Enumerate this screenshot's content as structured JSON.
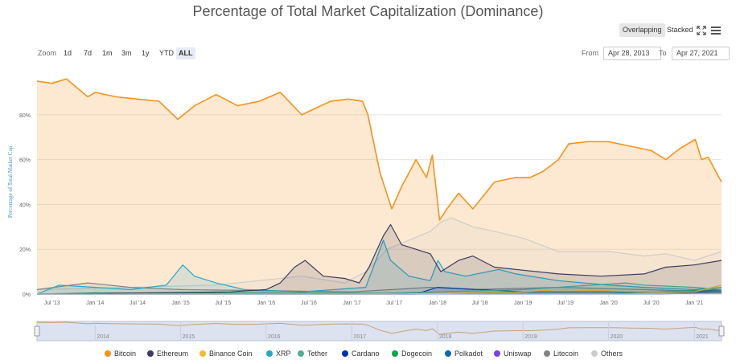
{
  "title": "Percentage of Total Market Capitalization (Dominance)",
  "toolbar": {
    "overlapping": "Overlapping",
    "stacked": "Stacked"
  },
  "zoom": {
    "label": "Zoom",
    "buttons": [
      "1d",
      "7d",
      "1m",
      "3m",
      "1y",
      "YTD",
      "ALL"
    ],
    "active": "ALL"
  },
  "range": {
    "from_label": "From",
    "from_value": "Apr 28, 2013",
    "to_label": "To",
    "to_value": "Apr 27, 2021"
  },
  "icons": {
    "fullscreen": "fullscreen-icon",
    "menu": "menu-icon"
  },
  "chart_data": {
    "type": "area",
    "title": "Percentage of Total Market Capitalization (Dominance)",
    "ylabel": "Percentage of Total Market Cap",
    "ylim": [
      0,
      100
    ],
    "yticks": [
      "0%",
      "20%",
      "40%",
      "60%",
      "80%"
    ],
    "xlim": [
      "2013-04-28",
      "2021-04-27"
    ],
    "xticks": [
      "Jul '13",
      "Jan '14",
      "Jul '14",
      "Jan '15",
      "Jul '15",
      "Jan '16",
      "Jul '16",
      "Jan '17",
      "Jul '17",
      "Jan '18",
      "Jul '18",
      "Jan '19",
      "Jul '19",
      "Jan '20",
      "Jul '20",
      "Jan '21"
    ],
    "navigator_years": [
      "2014",
      "2015",
      "2016",
      "2017",
      "2018",
      "2019",
      "2020",
      "2021"
    ],
    "grid": true,
    "legend_position": "bottom",
    "series": [
      {
        "name": "Bitcoin",
        "color": "#f7931a",
        "x": [
          "2013-04-28",
          "2013-07-01",
          "2013-09-01",
          "2013-12-01",
          "2014-01-01",
          "2014-04-01",
          "2014-07-01",
          "2014-10-01",
          "2014-12-20",
          "2015-03-01",
          "2015-06-01",
          "2015-09-01",
          "2015-12-01",
          "2016-03-01",
          "2016-06-01",
          "2016-08-01",
          "2016-10-01",
          "2016-12-15",
          "2017-02-15",
          "2017-03-10",
          "2017-05-01",
          "2017-06-20",
          "2017-08-01",
          "2017-09-01",
          "2017-10-01",
          "2017-11-15",
          "2017-12-10",
          "2018-01-10",
          "2018-02-10",
          "2018-04-01",
          "2018-06-01",
          "2018-09-01",
          "2018-12-01",
          "2019-02-01",
          "2019-04-01",
          "2019-06-01",
          "2019-07-15",
          "2019-10-01",
          "2020-01-01",
          "2020-04-01",
          "2020-07-01",
          "2020-09-01",
          "2020-11-01",
          "2021-01-05",
          "2021-02-01",
          "2021-03-01",
          "2021-04-27"
        ],
        "values": [
          95,
          94,
          96,
          88,
          90,
          88,
          87,
          86,
          78,
          84,
          89,
          84,
          86,
          90,
          80,
          83,
          86,
          87,
          86,
          80,
          54,
          38,
          48,
          54,
          60,
          52,
          62,
          33,
          38,
          45,
          38,
          50,
          52,
          52,
          55,
          60,
          67,
          68,
          68,
          66,
          64,
          60,
          65,
          69,
          60,
          61,
          50
        ]
      },
      {
        "name": "Ethereum",
        "color": "#3c3c5d",
        "x": [
          "2013-04-28",
          "2015-08-01",
          "2016-01-01",
          "2016-03-01",
          "2016-05-01",
          "2016-06-15",
          "2016-09-01",
          "2016-12-01",
          "2017-02-01",
          "2017-03-15",
          "2017-05-15",
          "2017-06-15",
          "2017-08-01",
          "2017-10-01",
          "2017-12-01",
          "2018-01-15",
          "2018-04-01",
          "2018-06-01",
          "2018-09-01",
          "2018-12-01",
          "2019-06-01",
          "2019-12-01",
          "2020-06-01",
          "2020-09-01",
          "2021-01-01",
          "2021-04-27"
        ],
        "values": [
          0,
          1,
          2,
          5,
          12,
          15,
          8,
          7,
          5,
          12,
          26,
          31,
          22,
          20,
          18,
          10,
          15,
          17,
          12,
          11,
          9,
          8,
          9,
          12,
          13,
          15
        ]
      },
      {
        "name": "Binance Coin",
        "color": "#f3ba2f",
        "x": [
          "2013-04-28",
          "2017-07-01",
          "2019-01-01",
          "2019-06-01",
          "2020-06-01",
          "2021-01-01",
          "2021-04-27"
        ],
        "values": [
          0,
          0,
          1,
          2,
          1,
          1,
          4
        ]
      },
      {
        "name": "XRP",
        "color": "#23a8c8",
        "x": [
          "2013-04-28",
          "2013-08-01",
          "2014-01-01",
          "2014-06-01",
          "2014-11-01",
          "2015-01-10",
          "2015-03-01",
          "2015-06-01",
          "2015-10-01",
          "2016-06-01",
          "2017-03-01",
          "2017-05-15",
          "2017-06-15",
          "2017-09-01",
          "2017-12-01",
          "2018-01-03",
          "2018-02-01",
          "2018-05-01",
          "2018-09-20",
          "2018-12-01",
          "2019-06-01",
          "2020-01-01",
          "2020-06-01",
          "2021-01-01",
          "2021-04-27"
        ],
        "values": [
          0,
          4,
          3,
          2,
          4,
          13,
          8,
          5,
          2,
          1,
          3,
          24,
          15,
          8,
          6,
          15,
          10,
          8,
          11,
          9,
          6,
          4,
          3,
          2,
          3
        ]
      },
      {
        "name": "Tether",
        "color": "#50af95",
        "x": [
          "2013-04-28",
          "2017-01-01",
          "2018-01-01",
          "2019-01-01",
          "2020-03-15",
          "2020-06-01",
          "2021-01-01",
          "2021-04-27"
        ],
        "values": [
          0,
          0,
          1,
          2,
          5,
          4,
          3,
          2
        ]
      },
      {
        "name": "Cardano",
        "color": "#0033ad",
        "x": [
          "2013-04-28",
          "2017-10-01",
          "2018-01-01",
          "2019-01-01",
          "2021-01-01",
          "2021-04-27"
        ],
        "values": [
          0,
          0,
          3,
          1,
          1,
          2
        ]
      },
      {
        "name": "Dogecoin",
        "color": "#07a84c",
        "x": [
          "2013-04-28",
          "2014-01-01",
          "2020-01-01",
          "2021-04-27"
        ],
        "values": [
          0,
          0.5,
          0.3,
          2
        ]
      },
      {
        "name": "Polkadot",
        "color": "#0b68b3",
        "x": [
          "2013-04-28",
          "2020-08-20",
          "2021-04-27"
        ],
        "values": [
          0,
          0,
          1.5
        ]
      },
      {
        "name": "Uniswap",
        "color": "#7b3fe4",
        "x": [
          "2013-04-28",
          "2020-09-17",
          "2021-04-27"
        ],
        "values": [
          0,
          0,
          1
        ]
      },
      {
        "name": "Litecoin",
        "color": "#838383",
        "x": [
          "2013-04-28",
          "2013-12-01",
          "2014-06-01",
          "2015-01-01",
          "2017-01-01",
          "2017-12-01",
          "2018-06-01",
          "2019-06-01",
          "2020-06-01",
          "2021-04-27"
        ],
        "values": [
          2,
          5,
          3,
          2,
          1,
          3,
          2,
          3,
          2,
          1
        ]
      },
      {
        "name": "Others",
        "color": "#cccccc",
        "x": [
          "2013-04-28",
          "2014-06-01",
          "2015-06-01",
          "2016-06-01",
          "2016-12-01",
          "2017-03-01",
          "2017-06-01",
          "2017-09-01",
          "2017-12-01",
          "2018-01-15",
          "2018-03-01",
          "2018-06-01",
          "2018-09-01",
          "2019-01-01",
          "2019-06-01",
          "2020-01-01",
          "2020-06-01",
          "2020-09-01",
          "2021-01-01",
          "2021-04-27"
        ],
        "values": [
          2,
          3,
          4,
          8,
          5,
          10,
          20,
          24,
          28,
          32,
          34,
          30,
          28,
          25,
          19,
          19,
          17,
          18,
          15,
          19
        ]
      }
    ]
  }
}
